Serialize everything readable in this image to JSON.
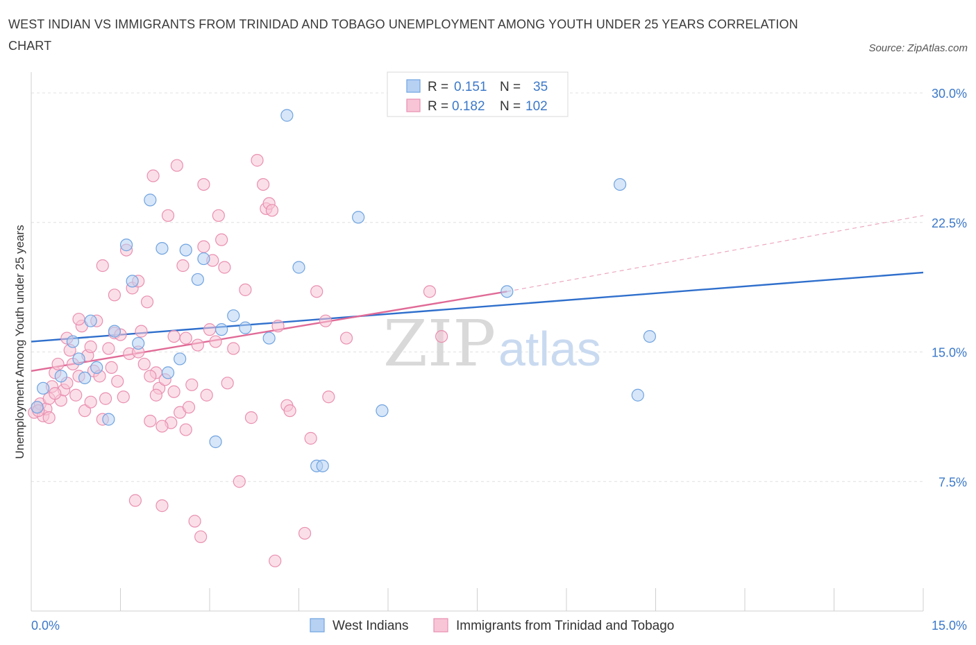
{
  "title": "WEST INDIAN VS IMMIGRANTS FROM TRINIDAD AND TOBAGO UNEMPLOYMENT AMONG YOUTH UNDER 25 YEARS CORRELATION CHART",
  "source": "Source: ZipAtlas.com",
  "watermark": {
    "zip": "ZIP",
    "atlas": "atlas"
  },
  "colors": {
    "blue": "#6fa3e0",
    "blue_fill": "#b7d1f3",
    "blue_line": "#2f6fcc",
    "pink": "#e98fb0",
    "pink_fill": "#f7c5d6",
    "pink_line": "#e06a96"
  },
  "legend": {
    "rows": [
      {
        "r_label": "R =",
        "r_value": "0.151",
        "n_label": "N =",
        "n_value": "35"
      },
      {
        "r_label": "R =",
        "r_value": "0.182",
        "n_label": "N =",
        "n_value": "102"
      }
    ]
  },
  "chart_data": {
    "type": "scatter",
    "title": "WEST INDIAN VS IMMIGRANTS FROM TRINIDAD AND TOBAGO UNEMPLOYMENT AMONG YOUTH UNDER 25 YEARS CORRELATION CHART",
    "xlabel": "",
    "ylabel": "Unemployment Among Youth under 25 years",
    "xlim": [
      0,
      15
    ],
    "ylim": [
      0,
      30
    ],
    "x_tick_labels": [
      "0.0%",
      "15.0%"
    ],
    "y_ticks": [
      7.5,
      15.0,
      22.5,
      30.0
    ],
    "y_tick_labels": [
      "7.5%",
      "15.0%",
      "22.5%",
      "30.0%"
    ],
    "grid": true,
    "legend_position": "top-center",
    "series": [
      {
        "name": "West Indians",
        "color": "#6fa3e0",
        "R": 0.151,
        "N": 35,
        "trend": {
          "x": [
            0,
            15
          ],
          "y": [
            15.6,
            19.6
          ]
        },
        "points": [
          [
            0.1,
            11.8
          ],
          [
            0.2,
            12.9
          ],
          [
            0.5,
            13.6
          ],
          [
            0.7,
            15.6
          ],
          [
            0.8,
            14.6
          ],
          [
            0.9,
            13.5
          ],
          [
            1.0,
            16.8
          ],
          [
            1.1,
            14.1
          ],
          [
            1.3,
            11.1
          ],
          [
            1.4,
            16.2
          ],
          [
            1.6,
            21.2
          ],
          [
            1.7,
            19.1
          ],
          [
            1.8,
            15.5
          ],
          [
            2.0,
            23.8
          ],
          [
            2.2,
            21.0
          ],
          [
            2.3,
            13.8
          ],
          [
            2.5,
            14.6
          ],
          [
            2.6,
            20.9
          ],
          [
            2.8,
            19.2
          ],
          [
            2.9,
            20.4
          ],
          [
            3.1,
            9.8
          ],
          [
            3.2,
            16.3
          ],
          [
            3.4,
            17.1
          ],
          [
            3.6,
            16.4
          ],
          [
            4.0,
            15.8
          ],
          [
            4.3,
            28.7
          ],
          [
            4.5,
            19.9
          ],
          [
            4.8,
            8.4
          ],
          [
            4.9,
            8.4
          ],
          [
            5.5,
            22.8
          ],
          [
            5.9,
            11.6
          ],
          [
            8.0,
            18.5
          ],
          [
            9.9,
            24.7
          ],
          [
            10.2,
            12.5
          ],
          [
            10.4,
            15.9
          ]
        ]
      },
      {
        "name": "Immigrants from Trinidad and Tobago",
        "color": "#e98fb0",
        "R": 0.182,
        "N": 102,
        "trend": {
          "x": [
            0,
            8.0
          ],
          "y": [
            13.9,
            18.5
          ]
        },
        "trend_dashed": {
          "x": [
            8.0,
            15
          ],
          "y": [
            18.5,
            22.9
          ]
        },
        "points": [
          [
            0.05,
            11.5
          ],
          [
            0.1,
            11.8
          ],
          [
            0.15,
            12.0
          ],
          [
            0.2,
            11.3
          ],
          [
            0.25,
            11.7
          ],
          [
            0.3,
            12.3
          ],
          [
            0.35,
            13.0
          ],
          [
            0.4,
            13.8
          ],
          [
            0.45,
            14.3
          ],
          [
            0.5,
            12.2
          ],
          [
            0.55,
            12.8
          ],
          [
            0.6,
            15.8
          ],
          [
            0.65,
            15.1
          ],
          [
            0.7,
            14.3
          ],
          [
            0.75,
            12.5
          ],
          [
            0.8,
            13.6
          ],
          [
            0.85,
            16.5
          ],
          [
            0.9,
            11.6
          ],
          [
            0.95,
            14.8
          ],
          [
            1.0,
            15.3
          ],
          [
            1.05,
            13.9
          ],
          [
            1.1,
            16.8
          ],
          [
            1.15,
            13.6
          ],
          [
            1.2,
            20.0
          ],
          [
            1.25,
            12.3
          ],
          [
            1.3,
            15.2
          ],
          [
            1.35,
            14.1
          ],
          [
            1.4,
            16.1
          ],
          [
            1.45,
            13.3
          ],
          [
            1.5,
            16.0
          ],
          [
            1.55,
            12.4
          ],
          [
            1.6,
            20.9
          ],
          [
            1.65,
            14.9
          ],
          [
            1.7,
            18.7
          ],
          [
            1.75,
            6.4
          ],
          [
            1.8,
            19.1
          ],
          [
            1.85,
            16.2
          ],
          [
            1.9,
            14.3
          ],
          [
            1.95,
            17.9
          ],
          [
            2.0,
            11.0
          ],
          [
            2.05,
            25.2
          ],
          [
            2.1,
            13.8
          ],
          [
            2.15,
            12.9
          ],
          [
            2.2,
            6.1
          ],
          [
            2.25,
            13.4
          ],
          [
            2.3,
            22.9
          ],
          [
            2.35,
            10.9
          ],
          [
            2.4,
            15.9
          ],
          [
            2.45,
            25.8
          ],
          [
            2.5,
            11.5
          ],
          [
            2.55,
            20.0
          ],
          [
            2.6,
            10.5
          ],
          [
            2.65,
            11.8
          ],
          [
            2.7,
            13.1
          ],
          [
            2.75,
            5.2
          ],
          [
            2.8,
            15.4
          ],
          [
            2.85,
            4.3
          ],
          [
            2.9,
            24.7
          ],
          [
            2.95,
            12.5
          ],
          [
            3.0,
            16.3
          ],
          [
            3.05,
            20.3
          ],
          [
            3.1,
            15.6
          ],
          [
            3.15,
            22.9
          ],
          [
            3.2,
            21.5
          ],
          [
            3.25,
            19.9
          ],
          [
            3.3,
            13.2
          ],
          [
            3.5,
            7.5
          ],
          [
            3.6,
            18.6
          ],
          [
            3.7,
            11.2
          ],
          [
            3.8,
            26.1
          ],
          [
            3.9,
            24.7
          ],
          [
            3.95,
            23.3
          ],
          [
            4.0,
            23.6
          ],
          [
            4.05,
            23.2
          ],
          [
            4.1,
            2.9
          ],
          [
            4.15,
            16.5
          ],
          [
            4.3,
            11.9
          ],
          [
            4.35,
            11.6
          ],
          [
            4.6,
            4.5
          ],
          [
            4.7,
            10.0
          ],
          [
            4.8,
            18.5
          ],
          [
            4.95,
            16.8
          ],
          [
            5.0,
            12.4
          ],
          [
            5.3,
            15.8
          ],
          [
            6.7,
            18.5
          ],
          [
            6.9,
            15.9
          ],
          [
            0.3,
            11.2
          ],
          [
            0.12,
            11.6
          ],
          [
            0.6,
            13.2
          ],
          [
            1.0,
            12.1
          ],
          [
            1.2,
            11.1
          ],
          [
            2.0,
            13.6
          ],
          [
            2.2,
            10.7
          ],
          [
            2.4,
            12.7
          ],
          [
            1.4,
            18.3
          ],
          [
            0.8,
            16.9
          ],
          [
            2.9,
            21.1
          ],
          [
            3.4,
            15.2
          ],
          [
            0.4,
            12.6
          ],
          [
            1.8,
            15.0
          ],
          [
            2.6,
            15.8
          ],
          [
            2.1,
            12.5
          ]
        ]
      }
    ]
  }
}
